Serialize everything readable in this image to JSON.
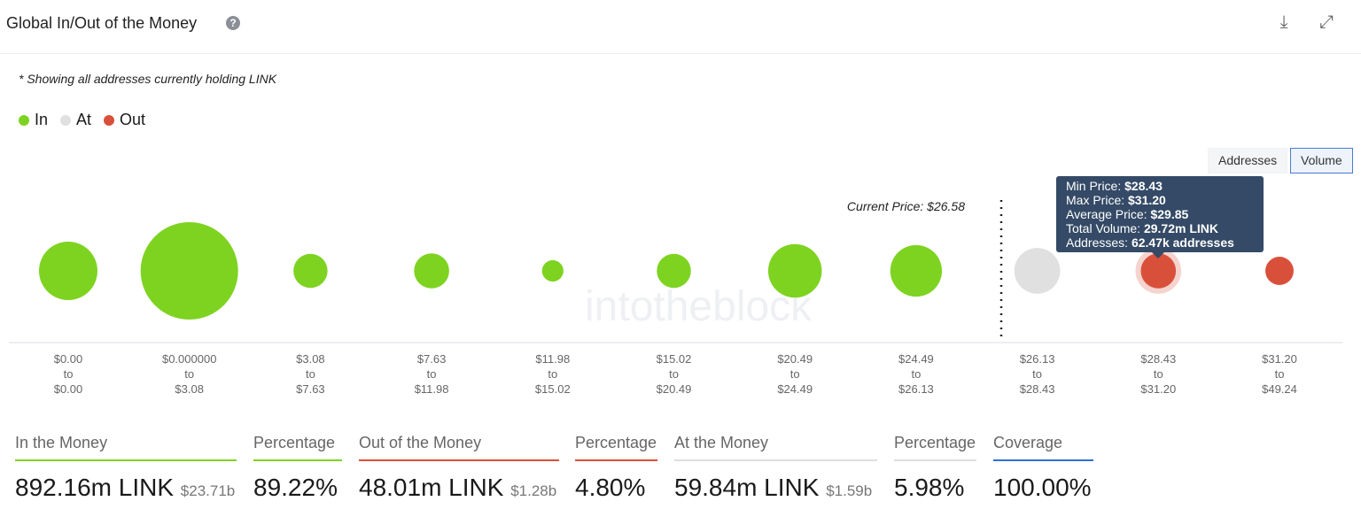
{
  "header": {
    "title": "Global In/Out of the Money",
    "help_icon": "question-circle-icon",
    "download_icon": "download-icon",
    "expand_icon": "fullscreen-icon"
  },
  "note": "* Showing all addresses currently holding LINK",
  "legend": [
    {
      "label": "In",
      "color": "#7ed321"
    },
    {
      "label": "At",
      "color": "#e0e0e0"
    },
    {
      "label": "Out",
      "color": "#d9503a"
    }
  ],
  "toggle": {
    "addresses": "Addresses",
    "volume": "Volume",
    "active": "Volume"
  },
  "watermark": "intotheblock",
  "chart_data": {
    "type": "bubble",
    "current_price_label": "Current Price: $26.58",
    "current_price": 26.58,
    "buckets": [
      {
        "from": "$0.00",
        "to": "$0.00",
        "status": "in",
        "relative_size": 0.6
      },
      {
        "from": "$0.000000",
        "to": "$3.08",
        "status": "in",
        "relative_size": 1.0
      },
      {
        "from": "$3.08",
        "to": "$7.63",
        "status": "in",
        "relative_size": 0.35
      },
      {
        "from": "$7.63",
        "to": "$11.98",
        "status": "in",
        "relative_size": 0.36
      },
      {
        "from": "$11.98",
        "to": "$15.02",
        "status": "in",
        "relative_size": 0.22
      },
      {
        "from": "$15.02",
        "to": "$20.49",
        "status": "in",
        "relative_size": 0.35
      },
      {
        "from": "$20.49",
        "to": "$24.49",
        "status": "in",
        "relative_size": 0.55
      },
      {
        "from": "$24.49",
        "to": "$26.13",
        "status": "in",
        "relative_size": 0.53
      },
      {
        "from": "$26.13",
        "to": "$28.43",
        "status": "at",
        "relative_size": 0.47
      },
      {
        "from": "$28.43",
        "to": "$31.20",
        "status": "out",
        "relative_size": 0.36,
        "highlighted": true
      },
      {
        "from": "$31.20",
        "to": "$49.24",
        "status": "out",
        "relative_size": 0.29
      }
    ],
    "to_word": "to",
    "tooltip": {
      "min_label": "Min Price:",
      "min": "$28.43",
      "max_label": "Max Price:",
      "max": "$31.20",
      "avg_label": "Average Price:",
      "avg": "$29.85",
      "vol_label": "Total Volume:",
      "vol": "29.72m LINK",
      "addr_label": "Addresses:",
      "addr": "62.47k addresses"
    }
  },
  "stats": [
    {
      "label": "In the Money",
      "value": "892.16m LINK",
      "sub": "$23.71b",
      "color": "#7ed321"
    },
    {
      "label": "Percentage",
      "value": "89.22%",
      "sub": "",
      "color": "#7ed321"
    },
    {
      "label": "Out of the Money",
      "value": "48.01m LINK",
      "sub": "$1.28b",
      "color": "#d9503a"
    },
    {
      "label": "Percentage",
      "value": "4.80%",
      "sub": "",
      "color": "#d9503a"
    },
    {
      "label": "At the Money",
      "value": "59.84m LINK",
      "sub": "$1.59b",
      "color": "#dddddd"
    },
    {
      "label": "Percentage",
      "value": "5.98%",
      "sub": "",
      "color": "#dddddd"
    },
    {
      "label": "Coverage",
      "value": "100.00%",
      "sub": "",
      "color": "#2f6fd6"
    }
  ]
}
